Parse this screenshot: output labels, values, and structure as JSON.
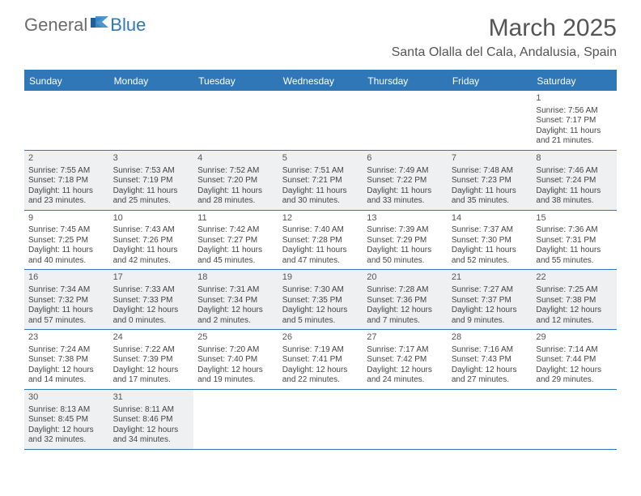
{
  "logo": {
    "text1": "General",
    "text2": "Blue"
  },
  "header": {
    "month": "March 2025",
    "location": "Santa Olalla del Cala, Andalusia, Spain"
  },
  "colors": {
    "brand": "#2f77b6",
    "shade": "#eef0f1",
    "text": "#444444",
    "logoGray": "#6b6b6b"
  },
  "dayNames": [
    "Sunday",
    "Monday",
    "Tuesday",
    "Wednesday",
    "Thursday",
    "Friday",
    "Saturday"
  ],
  "weeks": [
    [
      {
        "blank": true
      },
      {
        "blank": true
      },
      {
        "blank": true
      },
      {
        "blank": true
      },
      {
        "blank": true
      },
      {
        "blank": true
      },
      {
        "n": "1",
        "sr": "Sunrise: 7:56 AM",
        "ss": "Sunset: 7:17 PM",
        "d1": "Daylight: 11 hours",
        "d2": "and 21 minutes."
      }
    ],
    [
      {
        "n": "2",
        "sr": "Sunrise: 7:55 AM",
        "ss": "Sunset: 7:18 PM",
        "d1": "Daylight: 11 hours",
        "d2": "and 23 minutes.",
        "sh": true
      },
      {
        "n": "3",
        "sr": "Sunrise: 7:53 AM",
        "ss": "Sunset: 7:19 PM",
        "d1": "Daylight: 11 hours",
        "d2": "and 25 minutes.",
        "sh": true
      },
      {
        "n": "4",
        "sr": "Sunrise: 7:52 AM",
        "ss": "Sunset: 7:20 PM",
        "d1": "Daylight: 11 hours",
        "d2": "and 28 minutes.",
        "sh": true
      },
      {
        "n": "5",
        "sr": "Sunrise: 7:51 AM",
        "ss": "Sunset: 7:21 PM",
        "d1": "Daylight: 11 hours",
        "d2": "and 30 minutes.",
        "sh": true
      },
      {
        "n": "6",
        "sr": "Sunrise: 7:49 AM",
        "ss": "Sunset: 7:22 PM",
        "d1": "Daylight: 11 hours",
        "d2": "and 33 minutes.",
        "sh": true
      },
      {
        "n": "7",
        "sr": "Sunrise: 7:48 AM",
        "ss": "Sunset: 7:23 PM",
        "d1": "Daylight: 11 hours",
        "d2": "and 35 minutes.",
        "sh": true
      },
      {
        "n": "8",
        "sr": "Sunrise: 7:46 AM",
        "ss": "Sunset: 7:24 PM",
        "d1": "Daylight: 11 hours",
        "d2": "and 38 minutes.",
        "sh": true
      }
    ],
    [
      {
        "n": "9",
        "sr": "Sunrise: 7:45 AM",
        "ss": "Sunset: 7:25 PM",
        "d1": "Daylight: 11 hours",
        "d2": "and 40 minutes."
      },
      {
        "n": "10",
        "sr": "Sunrise: 7:43 AM",
        "ss": "Sunset: 7:26 PM",
        "d1": "Daylight: 11 hours",
        "d2": "and 42 minutes."
      },
      {
        "n": "11",
        "sr": "Sunrise: 7:42 AM",
        "ss": "Sunset: 7:27 PM",
        "d1": "Daylight: 11 hours",
        "d2": "and 45 minutes."
      },
      {
        "n": "12",
        "sr": "Sunrise: 7:40 AM",
        "ss": "Sunset: 7:28 PM",
        "d1": "Daylight: 11 hours",
        "d2": "and 47 minutes."
      },
      {
        "n": "13",
        "sr": "Sunrise: 7:39 AM",
        "ss": "Sunset: 7:29 PM",
        "d1": "Daylight: 11 hours",
        "d2": "and 50 minutes."
      },
      {
        "n": "14",
        "sr": "Sunrise: 7:37 AM",
        "ss": "Sunset: 7:30 PM",
        "d1": "Daylight: 11 hours",
        "d2": "and 52 minutes."
      },
      {
        "n": "15",
        "sr": "Sunrise: 7:36 AM",
        "ss": "Sunset: 7:31 PM",
        "d1": "Daylight: 11 hours",
        "d2": "and 55 minutes."
      }
    ],
    [
      {
        "n": "16",
        "sr": "Sunrise: 7:34 AM",
        "ss": "Sunset: 7:32 PM",
        "d1": "Daylight: 11 hours",
        "d2": "and 57 minutes.",
        "sh": true
      },
      {
        "n": "17",
        "sr": "Sunrise: 7:33 AM",
        "ss": "Sunset: 7:33 PM",
        "d1": "Daylight: 12 hours",
        "d2": "and 0 minutes.",
        "sh": true
      },
      {
        "n": "18",
        "sr": "Sunrise: 7:31 AM",
        "ss": "Sunset: 7:34 PM",
        "d1": "Daylight: 12 hours",
        "d2": "and 2 minutes.",
        "sh": true
      },
      {
        "n": "19",
        "sr": "Sunrise: 7:30 AM",
        "ss": "Sunset: 7:35 PM",
        "d1": "Daylight: 12 hours",
        "d2": "and 5 minutes.",
        "sh": true
      },
      {
        "n": "20",
        "sr": "Sunrise: 7:28 AM",
        "ss": "Sunset: 7:36 PM",
        "d1": "Daylight: 12 hours",
        "d2": "and 7 minutes.",
        "sh": true
      },
      {
        "n": "21",
        "sr": "Sunrise: 7:27 AM",
        "ss": "Sunset: 7:37 PM",
        "d1": "Daylight: 12 hours",
        "d2": "and 9 minutes.",
        "sh": true
      },
      {
        "n": "22",
        "sr": "Sunrise: 7:25 AM",
        "ss": "Sunset: 7:38 PM",
        "d1": "Daylight: 12 hours",
        "d2": "and 12 minutes.",
        "sh": true
      }
    ],
    [
      {
        "n": "23",
        "sr": "Sunrise: 7:24 AM",
        "ss": "Sunset: 7:38 PM",
        "d1": "Daylight: 12 hours",
        "d2": "and 14 minutes."
      },
      {
        "n": "24",
        "sr": "Sunrise: 7:22 AM",
        "ss": "Sunset: 7:39 PM",
        "d1": "Daylight: 12 hours",
        "d2": "and 17 minutes."
      },
      {
        "n": "25",
        "sr": "Sunrise: 7:20 AM",
        "ss": "Sunset: 7:40 PM",
        "d1": "Daylight: 12 hours",
        "d2": "and 19 minutes."
      },
      {
        "n": "26",
        "sr": "Sunrise: 7:19 AM",
        "ss": "Sunset: 7:41 PM",
        "d1": "Daylight: 12 hours",
        "d2": "and 22 minutes."
      },
      {
        "n": "27",
        "sr": "Sunrise: 7:17 AM",
        "ss": "Sunset: 7:42 PM",
        "d1": "Daylight: 12 hours",
        "d2": "and 24 minutes."
      },
      {
        "n": "28",
        "sr": "Sunrise: 7:16 AM",
        "ss": "Sunset: 7:43 PM",
        "d1": "Daylight: 12 hours",
        "d2": "and 27 minutes."
      },
      {
        "n": "29",
        "sr": "Sunrise: 7:14 AM",
        "ss": "Sunset: 7:44 PM",
        "d1": "Daylight: 12 hours",
        "d2": "and 29 minutes."
      }
    ],
    [
      {
        "n": "30",
        "sr": "Sunrise: 8:13 AM",
        "ss": "Sunset: 8:45 PM",
        "d1": "Daylight: 12 hours",
        "d2": "and 32 minutes.",
        "sh": true
      },
      {
        "n": "31",
        "sr": "Sunrise: 8:11 AM",
        "ss": "Sunset: 8:46 PM",
        "d1": "Daylight: 12 hours",
        "d2": "and 34 minutes.",
        "sh": true
      },
      {
        "blank": true
      },
      {
        "blank": true
      },
      {
        "blank": true
      },
      {
        "blank": true
      },
      {
        "blank": true
      }
    ]
  ]
}
